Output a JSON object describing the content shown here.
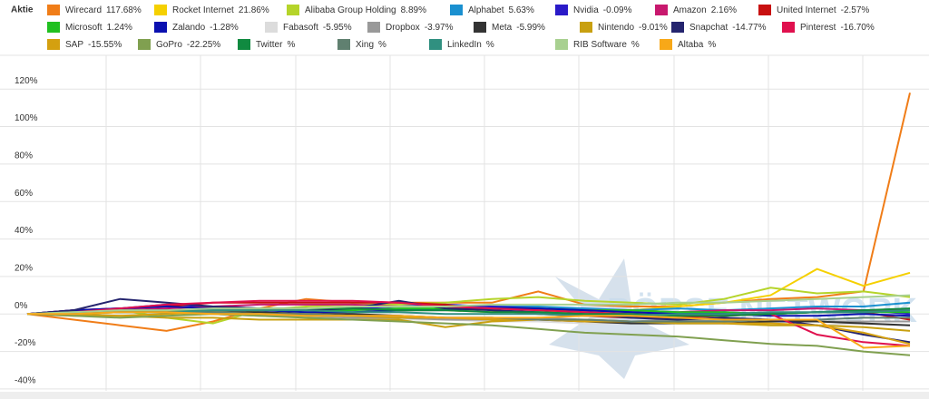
{
  "chart_data": {
    "type": "line",
    "legend_title": "Aktie",
    "watermark": "BÖRSE NETWORK",
    "categories": [
      null,
      null,
      null,
      null,
      null,
      null,
      null,
      null,
      null,
      null,
      null,
      null,
      null,
      null,
      null,
      null,
      null,
      null,
      null,
      null
    ],
    "ylim": [
      -41,
      138
    ],
    "yticks": [
      {
        "value": -40,
        "label": "-40%"
      },
      {
        "value": -20,
        "label": "-20%"
      },
      {
        "value": 0,
        "label": "0%"
      },
      {
        "value": 20,
        "label": "20%"
      },
      {
        "value": 40,
        "label": "40%"
      },
      {
        "value": 60,
        "label": "60%"
      },
      {
        "value": 80,
        "label": "80%"
      },
      {
        "value": 100,
        "label": "100%"
      },
      {
        "value": 120,
        "label": "120%"
      }
    ],
    "grid": true,
    "series": [
      {
        "name": "Wirecard",
        "legend_value": "117.68%",
        "color": "#f07d18",
        "values": [
          0,
          -3,
          -6,
          -9,
          -4,
          3,
          8,
          6,
          6,
          6,
          6,
          12,
          5,
          4,
          4,
          6,
          8,
          9,
          12,
          118
        ]
      },
      {
        "name": "Rocket Internet",
        "legend_value": "21.86%",
        "color": "#f5d000",
        "values": [
          0,
          0,
          1,
          1,
          2,
          3,
          3,
          3,
          2,
          2,
          1,
          1,
          1,
          2,
          4,
          6,
          10,
          24,
          15,
          22
        ]
      },
      {
        "name": "Alibaba Group Holding",
        "legend_value": "8.89%",
        "color": "#b5d42a",
        "values": [
          0,
          1,
          2,
          -2,
          -5,
          2,
          4,
          5,
          5,
          6,
          8,
          9,
          7,
          6,
          5,
          8,
          14,
          11,
          12,
          9
        ]
      },
      {
        "name": "Alphabet",
        "legend_value": "5.63%",
        "color": "#1a90d0",
        "values": [
          0,
          1,
          1,
          2,
          2,
          2,
          3,
          3,
          2,
          3,
          4,
          4,
          3,
          2,
          3,
          2,
          3,
          4,
          4,
          6
        ]
      },
      {
        "name": "Nvidia",
        "legend_value": "-0.09%",
        "color": "#2a1ac8",
        "values": [
          0,
          2,
          3,
          5,
          4,
          3,
          3,
          3,
          4,
          5,
          4,
          3,
          2,
          1,
          0,
          1,
          0,
          1,
          2,
          0
        ]
      },
      {
        "name": "Amazon",
        "legend_value": "2.16%",
        "color": "#c8186e",
        "values": [
          0,
          1,
          2,
          3,
          4,
          5,
          5,
          5,
          4,
          4,
          3,
          2,
          2,
          2,
          1,
          2,
          2,
          3,
          2,
          2
        ]
      },
      {
        "name": "United Internet",
        "legend_value": "-2.57%",
        "color": "#c81010",
        "values": [
          0,
          2,
          3,
          4,
          6,
          6,
          6,
          6,
          6,
          5,
          2,
          0,
          -1,
          -2,
          -2,
          -1,
          0,
          1,
          1,
          -3
        ]
      },
      {
        "name": "Microsoft",
        "legend_value": "1.24%",
        "color": "#20c020",
        "values": [
          0,
          1,
          1,
          1,
          2,
          2,
          2,
          2,
          3,
          3,
          3,
          3,
          2,
          2,
          1,
          1,
          0,
          1,
          1,
          1
        ]
      },
      {
        "name": "Zalando",
        "legend_value": "-1.28%",
        "color": "#0a10b0",
        "values": [
          0,
          2,
          3,
          4,
          3,
          2,
          1,
          1,
          2,
          2,
          3,
          3,
          2,
          1,
          0,
          0,
          -1,
          -1,
          0,
          -1
        ]
      },
      {
        "name": "Fabasoft",
        "legend_value": "-5.95%",
        "color": "#dcdcdc",
        "values": [
          0,
          0,
          1,
          1,
          0,
          -1,
          -2,
          -2,
          -3,
          -3,
          -4,
          -4,
          -5,
          -5,
          -4,
          -5,
          -6,
          -6,
          -5,
          -6
        ]
      },
      {
        "name": "Dropbox",
        "legend_value": "-3.97%",
        "color": "#999999",
        "values": [
          0,
          1,
          2,
          1,
          0,
          -1,
          -1,
          -2,
          -2,
          -3,
          -3,
          -2,
          -3,
          -4,
          -3,
          -4,
          -3,
          -4,
          -4,
          -4
        ]
      },
      {
        "name": "Meta",
        "legend_value": "-5.99%",
        "color": "#333333",
        "values": [
          0,
          1,
          2,
          2,
          1,
          1,
          0,
          0,
          -1,
          -2,
          -2,
          -3,
          -4,
          -5,
          -5,
          -5,
          -4,
          -4,
          -5,
          -6
        ]
      },
      {
        "name": "Nintendo",
        "legend_value": "-9.01%",
        "color": "#c8a010",
        "values": [
          0,
          0,
          -1,
          -2,
          -2,
          -3,
          -3,
          -3,
          -3,
          -7,
          -4,
          -3,
          -3,
          -4,
          -5,
          -5,
          -6,
          -6,
          -7,
          -9
        ]
      },
      {
        "name": "Snapchat",
        "legend_value": "-14.77%",
        "color": "#24246e",
        "values": [
          0,
          2,
          8,
          6,
          4,
          3,
          2,
          3,
          7,
          3,
          2,
          1,
          0,
          -2,
          -3,
          -2,
          -3,
          -6,
          -11,
          -15
        ]
      },
      {
        "name": "Pinterest",
        "legend_value": "-16.70%",
        "color": "#e0104e",
        "values": [
          0,
          1,
          3,
          5,
          6,
          7,
          7,
          7,
          6,
          4,
          3,
          2,
          1,
          0,
          -1,
          -1,
          0,
          -11,
          -15,
          -17
        ]
      },
      {
        "name": "SAP",
        "legend_value": "-15.55%",
        "color": "#d4a010",
        "values": [
          0,
          -1,
          -1,
          0,
          1,
          0,
          0,
          -1,
          -2,
          -2,
          -3,
          -3,
          -4,
          -4,
          -4,
          -5,
          -5,
          -6,
          -10,
          -16
        ]
      },
      {
        "name": "GoPro",
        "legend_value": "-22.25%",
        "color": "#80a050",
        "values": [
          0,
          -1,
          -2,
          -1,
          0,
          -1,
          -2,
          -3,
          -4,
          -5,
          -6,
          -8,
          -10,
          -11,
          -12,
          -14,
          -16,
          -17,
          -20,
          -22
        ]
      },
      {
        "name": "Twitter",
        "legend_value": "%",
        "color": "#108a40",
        "values": [
          0,
          1,
          1,
          2,
          2,
          3,
          3,
          3,
          2,
          2,
          1,
          1,
          0,
          0,
          -1,
          -1,
          0,
          1,
          2,
          3
        ]
      },
      {
        "name": "Xing",
        "legend_value": "%",
        "color": "#608070",
        "values": [
          0,
          0,
          1,
          1,
          1,
          0,
          0,
          -1,
          -1,
          -2,
          -2,
          -3,
          -3,
          -4,
          -4,
          -4,
          -3,
          -3,
          -2,
          -2
        ]
      },
      {
        "name": "LinkedIn",
        "legend_value": "%",
        "color": "#309080",
        "values": [
          0,
          1,
          1,
          1,
          2,
          2,
          2,
          1,
          1,
          0,
          0,
          0,
          -1,
          -1,
          0,
          0,
          1,
          1,
          1,
          2
        ]
      },
      {
        "name": "RIB Software",
        "legend_value": "%",
        "color": "#a8d090",
        "values": [
          0,
          1,
          2,
          2,
          3,
          3,
          3,
          4,
          4,
          4,
          5,
          5,
          5,
          5,
          6,
          6,
          7,
          8,
          9,
          10
        ]
      },
      {
        "name": "Altaba",
        "legend_value": "%",
        "color": "#f8a818",
        "values": [
          0,
          0,
          1,
          1,
          0,
          0,
          -1,
          -1,
          -1,
          -2,
          -2,
          -2,
          -1,
          -1,
          -2,
          -3,
          -3,
          -3,
          -18,
          -17
        ]
      }
    ]
  }
}
